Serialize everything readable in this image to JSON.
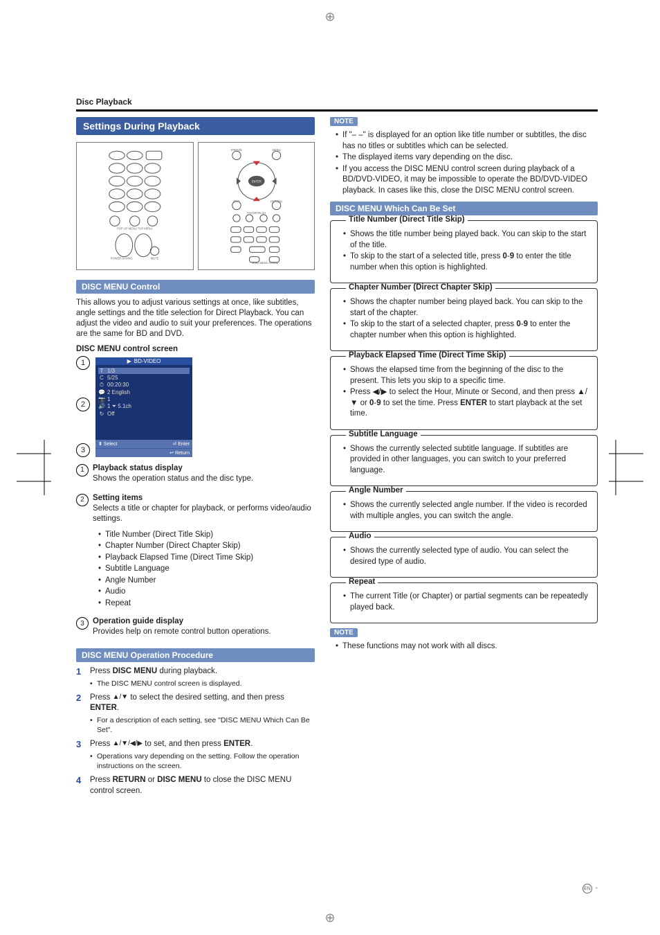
{
  "header": {
    "page_title": "Disc Playback"
  },
  "banner": "Settings During Playback",
  "disc_menu_control": {
    "heading": "DISC MENU Control",
    "intro": "This allows you to adjust various settings at once, like subtitles, angle settings and the title selection for Direct Playback. You can adjust the video and audio to suit your preferences. The operations are the same for BD and DVD.",
    "screen_label": "DISC MENU control screen",
    "screen": {
      "header": "BD-VIDEO",
      "rows": [
        {
          "icon": "T",
          "val": "1/3"
        },
        {
          "icon": "C",
          "val": "5/25"
        },
        {
          "icon": "⏱",
          "val": "00:20:30"
        },
        {
          "icon": "💬",
          "val": "2 English"
        },
        {
          "icon": "📷",
          "val": "1"
        },
        {
          "icon": "🔊",
          "val": "1  ⏷  5.1ch"
        },
        {
          "icon": "↻",
          "val": "Off"
        }
      ],
      "footer": {
        "select": "Select",
        "enter": "Enter",
        "return": "Return"
      }
    },
    "items": [
      {
        "num": "1",
        "title": "Playback status display",
        "desc": "Shows the operation status and the disc type."
      },
      {
        "num": "2",
        "title": "Setting items",
        "desc": "Selects a title or chapter for playback, or performs video/audio settings.",
        "bullets": [
          "Title Number (Direct Title Skip)",
          "Chapter Number (Direct Chapter Skip)",
          "Playback Elapsed Time (Direct Time Skip)",
          "Subtitle Language",
          "Angle Number",
          "Audio",
          "Repeat"
        ]
      },
      {
        "num": "3",
        "title": "Operation guide display",
        "desc": "Provides help on remote control button operations."
      }
    ]
  },
  "procedure": {
    "heading": "DISC MENU Operation Procedure",
    "steps": [
      {
        "n": "1",
        "main_pre": "Press ",
        "bold": "DISC MENU",
        "main_post": " during playback.",
        "sub": "The DISC MENU control screen is displayed."
      },
      {
        "n": "2",
        "main_pre": "Press ",
        "arrows": "▲/▼",
        "main_mid": " to select the desired setting, and then press ",
        "bold": "ENTER",
        "main_post": ".",
        "sub": "For a description of each setting, see \"DISC MENU Which Can Be Set\"."
      },
      {
        "n": "3",
        "main_pre": "Press ",
        "arrows": "▲/▼/◀/▶",
        "main_mid": " to set, and then press ",
        "bold": "ENTER",
        "main_post": ".",
        "sub": "Operations vary depending on the setting. Follow the operation instructions on the screen."
      },
      {
        "n": "4",
        "main_pre": "Press ",
        "bold": "RETURN",
        "main_mid": " or ",
        "bold2": "DISC MENU",
        "main_post": " to close the DISC MENU control screen."
      }
    ]
  },
  "right_notes_top": {
    "label": "NOTE",
    "bullets": [
      "If \"– –\" is displayed for an option like title number or subtitles, the disc has no titles or subtitles which can be selected.",
      "The displayed items vary depending on the disc.",
      "If you access the DISC MENU control screen during playback of a BD/DVD-VIDEO, it may be impossible to operate the BD/DVD-VIDEO playback. In cases like this, close the DISC MENU control screen."
    ]
  },
  "can_be_set": {
    "heading": "DISC MENU Which Can Be Set",
    "boxes": [
      {
        "title": "Title Number (Direct Title Skip)",
        "bullets": [
          "Shows the title number being played back. You can skip to the start of the title.",
          "To skip to the start of a selected title, press <b>0</b>-<b>9</b> to enter the title number when this option is highlighted."
        ]
      },
      {
        "title": "Chapter Number (Direct Chapter Skip)",
        "bullets": [
          "Shows the chapter number being played back. You can skip to the start of the chapter.",
          "To skip to the start of a selected chapter, press <b>0</b>-<b>9</b> to enter the chapter number when this option is highlighted."
        ]
      },
      {
        "title": "Playback Elapsed Time (Direct Time Skip)",
        "bullets": [
          "Shows the elapsed time from the beginning of the disc to the present. This lets you skip to a specific time.",
          "Press ◀/▶ to select the Hour, Minute or Second, and then press ▲/▼ or <b>0</b>-<b>9</b> to set the time. Press <b>ENTER</b> to start playback at the set time."
        ]
      },
      {
        "title": "Subtitle Language",
        "bullets": [
          "Shows the currently selected subtitle language. If subtitles are provided in other languages, you can switch to your preferred language."
        ]
      },
      {
        "title": "Angle Number",
        "bullets": [
          "Shows the currently selected angle number. If the video is recorded with multiple angles, you can switch the angle."
        ]
      },
      {
        "title": "Audio",
        "bullets": [
          "Shows the currently selected type of audio. You can select the desired type of audio."
        ]
      },
      {
        "title": "Repeat",
        "bullets": [
          "The current Title (or Chapter) or partial segments can be repeatedly played back."
        ]
      }
    ]
  },
  "right_notes_bottom": {
    "label": "NOTE",
    "bullets": [
      "These functions may not work with all discs."
    ]
  },
  "page_number_suffix": " -",
  "colors": {
    "banner_bg": "#3a5da0",
    "subbanner_bg": "#6f8dbf",
    "step_num": "#2a4e9f",
    "screen_header": "#2a4e9f",
    "screen_body": "#1a3270",
    "screen_footer": "#5973b0"
  }
}
